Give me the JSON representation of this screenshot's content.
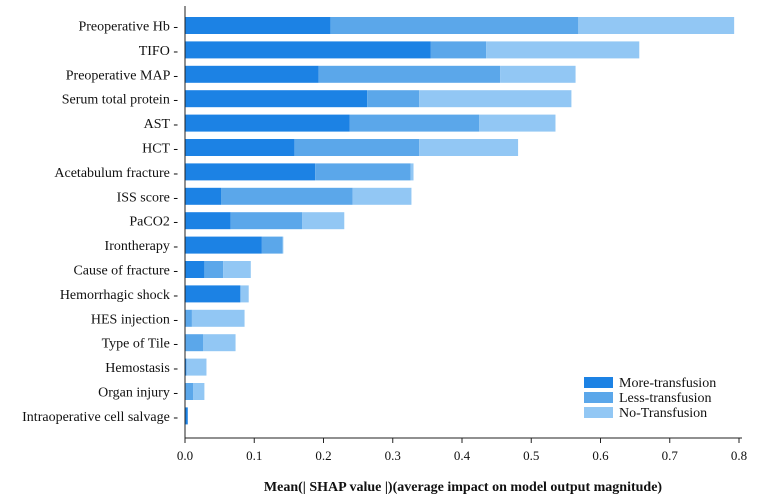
{
  "chart_data": {
    "type": "bar",
    "orientation": "horizontal",
    "stacked": true,
    "title": "",
    "xlabel": "Mean(| SHAP value |)(average impact on model output magnitude)",
    "ylabel": "",
    "xlim": [
      0,
      0.82
    ],
    "xticks": [
      "0.0",
      "0.1",
      "0.2",
      "0.3",
      "0.4",
      "0.5",
      "0.6",
      "0.7",
      "0.8"
    ],
    "grid": false,
    "legend_position": "bottom-right",
    "categories": [
      "Preoperative Hb",
      "TIFO",
      "Preoperative  MAP",
      "Serum total protein",
      "AST",
      "HCT",
      "Acetabulum fracture",
      "ISS score",
      "PaCO2",
      "Irontherapy",
      "Cause of fracture",
      "Hemorrhagic shock",
      "HES injection",
      "Type of Tile",
      "Hemostasis",
      "Organ injury",
      "Intraoperative cell salvage"
    ],
    "series": [
      {
        "name": "More-transfusion",
        "color": "#1c82e4",
        "values": [
          0.21,
          0.355,
          0.193,
          0.263,
          0.238,
          0.158,
          0.188,
          0.052,
          0.066,
          0.111,
          0.028,
          0.08,
          0.0,
          0.0,
          0.002,
          0.0,
          0.004
        ]
      },
      {
        "name": "Less-transfusion",
        "color": "#5ba7ea",
        "values": [
          0.358,
          0.08,
          0.262,
          0.075,
          0.187,
          0.18,
          0.138,
          0.19,
          0.103,
          0.03,
          0.027,
          0.0,
          0.01,
          0.026,
          0.0,
          0.012,
          0.0
        ]
      },
      {
        "name": "No-Transfusion",
        "color": "#92c7f4",
        "values": [
          0.225,
          0.221,
          0.109,
          0.22,
          0.11,
          0.143,
          0.004,
          0.085,
          0.061,
          0.001,
          0.04,
          0.012,
          0.076,
          0.047,
          0.029,
          0.016,
          0.0
        ]
      }
    ]
  }
}
